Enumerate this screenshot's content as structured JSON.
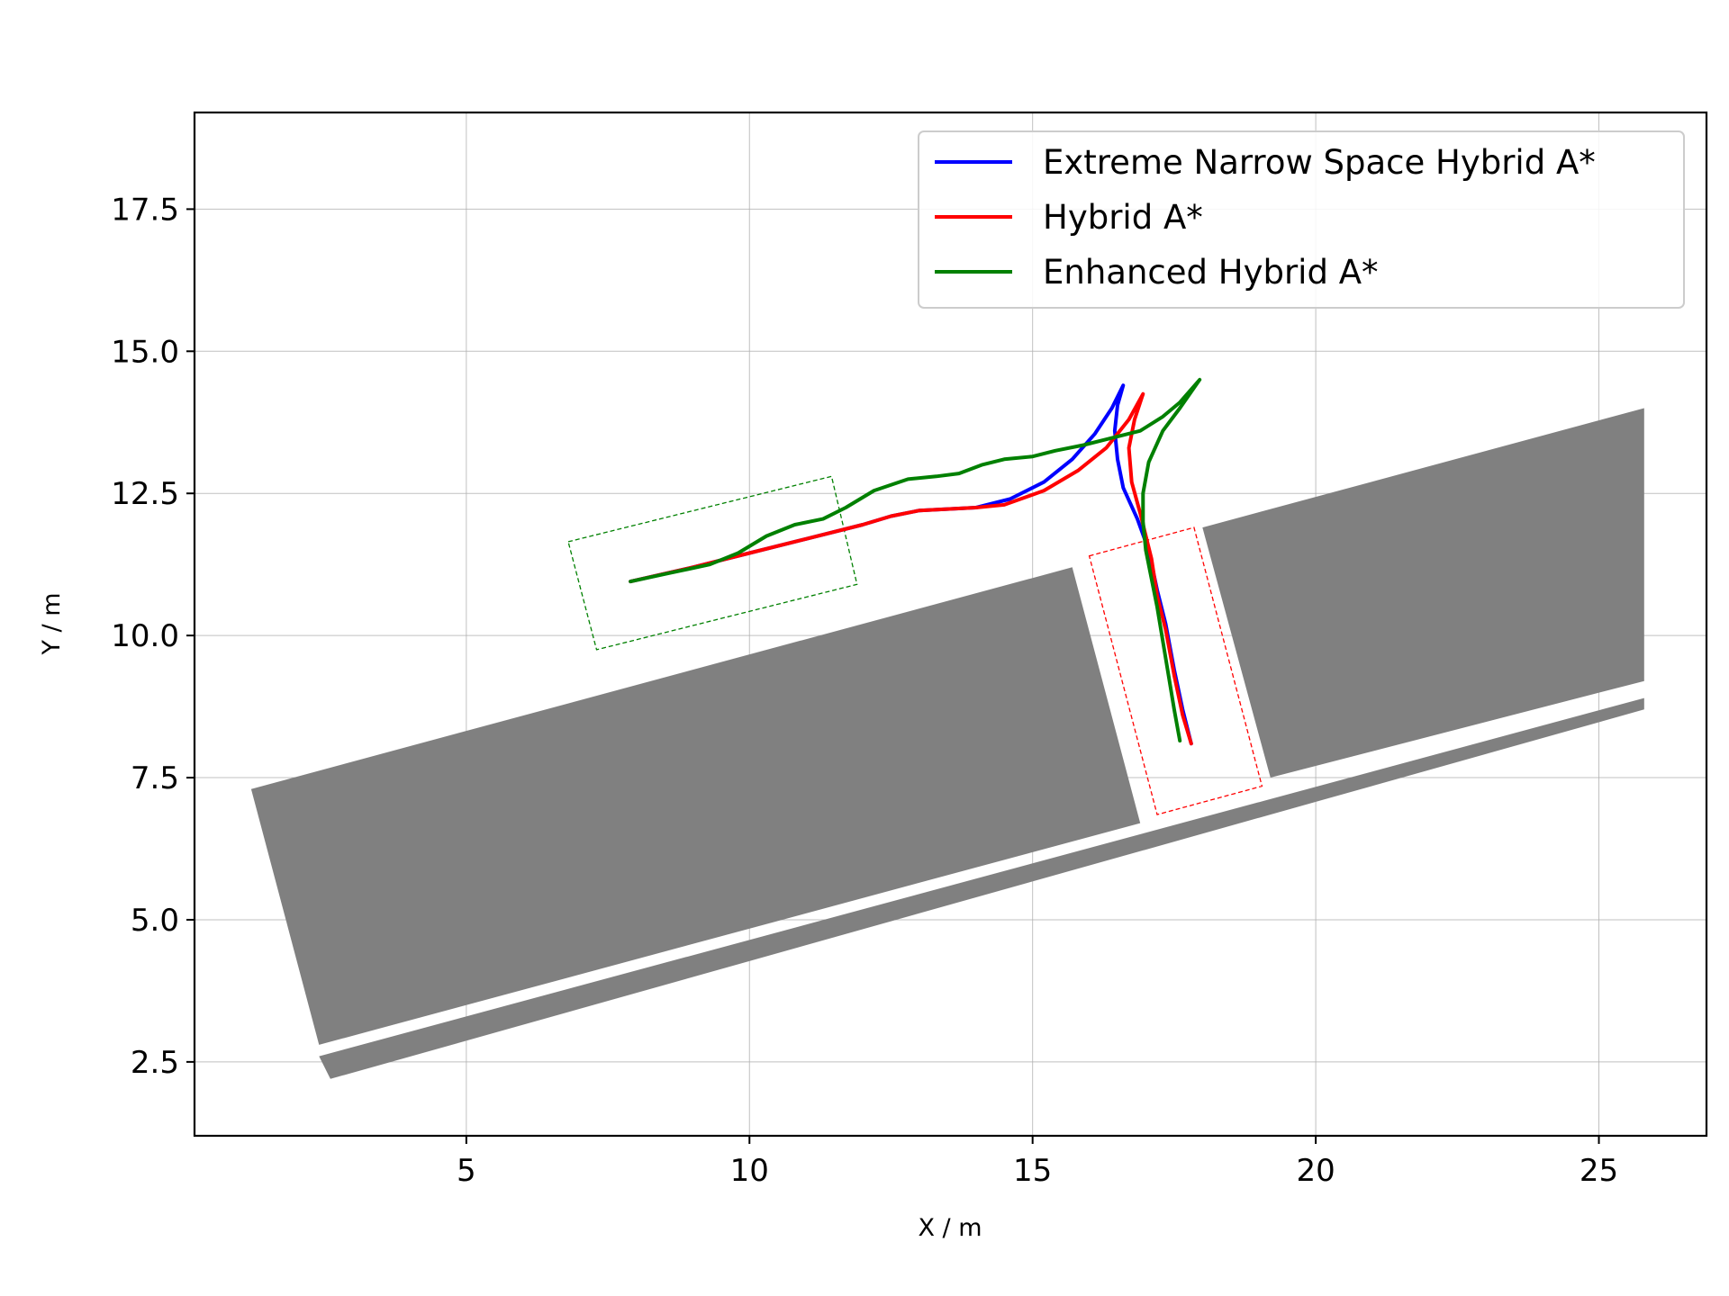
{
  "chart_data": {
    "type": "line",
    "title": "",
    "xlabel": "X / m",
    "ylabel": "Y / m",
    "xlim": [
      0.2,
      26.9
    ],
    "ylim": [
      1.2,
      19.2
    ],
    "xticks": [
      5,
      10,
      15,
      20,
      25
    ],
    "yticks": [
      2.5,
      5.0,
      7.5,
      10.0,
      12.5,
      15.0,
      17.5
    ],
    "xtick_labels": [
      "5",
      "10",
      "15",
      "20",
      "25"
    ],
    "ytick_labels": [
      "2.5",
      "5.0",
      "7.5",
      "10.0",
      "12.5",
      "15.0",
      "17.5"
    ],
    "grid": true,
    "legend_position": "upper right",
    "obstacle_color": "#808080",
    "obstacles": [
      {
        "name": "left-parked-block",
        "points": [
          [
            1.2,
            7.3
          ],
          [
            15.7,
            11.2
          ],
          [
            16.9,
            6.7
          ],
          [
            2.4,
            2.8
          ]
        ]
      },
      {
        "name": "right-parked-block",
        "points": [
          [
            18.0,
            11.9
          ],
          [
            25.8,
            14.0
          ],
          [
            25.8,
            9.2
          ],
          [
            19.2,
            7.5
          ]
        ]
      },
      {
        "name": "curb-strip",
        "points": [
          [
            2.4,
            2.6
          ],
          [
            25.8,
            8.9
          ],
          [
            25.8,
            8.7
          ],
          [
            2.6,
            2.2
          ]
        ]
      }
    ],
    "footprints": [
      {
        "name": "start-vehicle-footprint",
        "color": "#008000",
        "points": [
          [
            6.8,
            11.65
          ],
          [
            11.45,
            12.8
          ],
          [
            11.9,
            10.9
          ],
          [
            7.3,
            9.75
          ]
        ]
      },
      {
        "name": "goal-vehicle-footprint",
        "color": "#ff0000",
        "points": [
          [
            16.0,
            11.4
          ],
          [
            17.85,
            11.9
          ],
          [
            19.05,
            7.35
          ],
          [
            17.2,
            6.85
          ]
        ]
      }
    ],
    "series": [
      {
        "name": "Extreme Narrow Space Hybrid A*",
        "color": "#0000ff",
        "points": [
          [
            7.9,
            10.95
          ],
          [
            9.0,
            11.2
          ],
          [
            10.0,
            11.45
          ],
          [
            11.0,
            11.7
          ],
          [
            12.0,
            11.95
          ],
          [
            12.5,
            12.1
          ],
          [
            13.0,
            12.2
          ],
          [
            14.0,
            12.25
          ],
          [
            14.6,
            12.4
          ],
          [
            15.2,
            12.7
          ],
          [
            15.7,
            13.1
          ],
          [
            16.1,
            13.55
          ],
          [
            16.4,
            14.0
          ],
          [
            16.6,
            14.4
          ],
          [
            16.5,
            14.05
          ],
          [
            16.45,
            13.6
          ],
          [
            16.5,
            13.1
          ],
          [
            16.6,
            12.6
          ],
          [
            16.85,
            12.05
          ],
          [
            17.05,
            11.5
          ],
          [
            17.2,
            10.8
          ],
          [
            17.35,
            10.2
          ],
          [
            17.5,
            9.4
          ],
          [
            17.65,
            8.7
          ],
          [
            17.8,
            8.1
          ]
        ]
      },
      {
        "name": "Hybrid A*",
        "color": "#ff0000",
        "points": [
          [
            7.9,
            10.95
          ],
          [
            9.0,
            11.2
          ],
          [
            10.0,
            11.45
          ],
          [
            11.0,
            11.7
          ],
          [
            12.0,
            11.95
          ],
          [
            12.5,
            12.1
          ],
          [
            13.0,
            12.2
          ],
          [
            14.0,
            12.25
          ],
          [
            14.5,
            12.3
          ],
          [
            15.2,
            12.55
          ],
          [
            15.8,
            12.9
          ],
          [
            16.3,
            13.3
          ],
          [
            16.7,
            13.8
          ],
          [
            16.95,
            14.25
          ],
          [
            16.8,
            13.8
          ],
          [
            16.7,
            13.3
          ],
          [
            16.75,
            12.7
          ],
          [
            16.9,
            12.15
          ],
          [
            17.1,
            11.35
          ],
          [
            17.2,
            10.7
          ],
          [
            17.35,
            10.1
          ],
          [
            17.5,
            9.3
          ],
          [
            17.65,
            8.6
          ],
          [
            17.8,
            8.1
          ]
        ]
      },
      {
        "name": "Enhanced Hybrid A*",
        "color": "#008000",
        "points": [
          [
            7.9,
            10.95
          ],
          [
            8.6,
            11.1
          ],
          [
            9.3,
            11.25
          ],
          [
            9.8,
            11.45
          ],
          [
            10.3,
            11.75
          ],
          [
            10.8,
            11.95
          ],
          [
            11.3,
            12.05
          ],
          [
            11.7,
            12.25
          ],
          [
            12.2,
            12.55
          ],
          [
            12.8,
            12.75
          ],
          [
            13.3,
            12.8
          ],
          [
            13.7,
            12.85
          ],
          [
            14.1,
            13.0
          ],
          [
            14.5,
            13.1
          ],
          [
            15.0,
            13.15
          ],
          [
            15.4,
            13.25
          ],
          [
            15.9,
            13.35
          ],
          [
            16.3,
            13.45
          ],
          [
            16.9,
            13.6
          ],
          [
            17.3,
            13.85
          ],
          [
            17.6,
            14.1
          ],
          [
            17.95,
            14.5
          ],
          [
            17.6,
            14.0
          ],
          [
            17.3,
            13.6
          ],
          [
            17.05,
            13.05
          ],
          [
            16.95,
            12.5
          ],
          [
            16.95,
            12.0
          ],
          [
            17.0,
            11.5
          ],
          [
            17.1,
            11.0
          ],
          [
            17.2,
            10.5
          ],
          [
            17.3,
            9.9
          ],
          [
            17.4,
            9.3
          ],
          [
            17.5,
            8.7
          ],
          [
            17.6,
            8.15
          ]
        ]
      }
    ]
  }
}
